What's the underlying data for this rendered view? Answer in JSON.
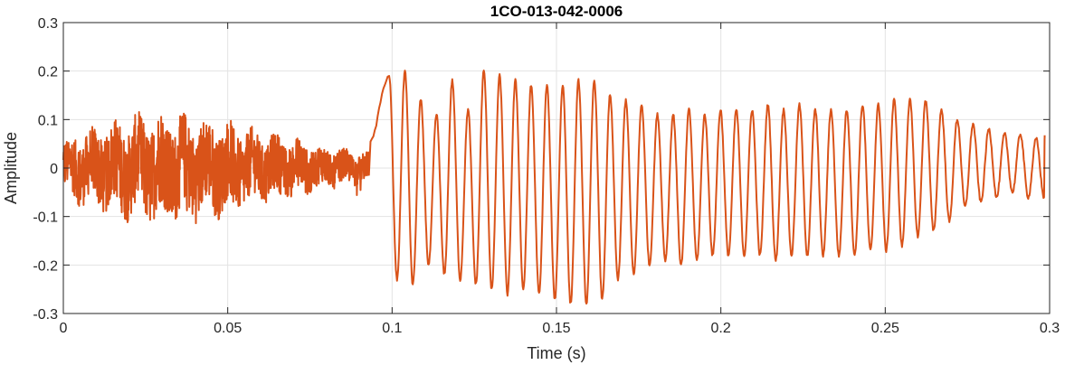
{
  "chart_data": {
    "type": "line",
    "title": "1CO-013-042-0006",
    "xlabel": "Time (s)",
    "ylabel": "Amplitude",
    "xlim": [
      0,
      0.3
    ],
    "ylim": [
      -0.3,
      0.3
    ],
    "xticks": [
      0,
      0.05,
      0.1,
      0.15,
      0.2,
      0.25,
      0.3
    ],
    "xtick_labels": [
      "0",
      "0.05",
      "0.1",
      "0.15",
      "0.2",
      "0.25",
      "0.3"
    ],
    "yticks": [
      -0.3,
      -0.2,
      -0.1,
      0,
      0.1,
      0.2,
      0.3
    ],
    "ytick_labels": [
      "-0.3",
      "-0.2",
      "-0.1",
      "0",
      "0.1",
      "0.2",
      "0.3"
    ],
    "grid": true,
    "line_color": "#D95319",
    "series": [
      {
        "noise_segment": {
          "t_start": 0,
          "t_end": 0.093,
          "amplitude_envelope": [
            [
              0,
              0.06
            ],
            [
              0.01,
              0.08
            ],
            [
              0.02,
              0.1
            ],
            [
              0.03,
              0.11
            ],
            [
              0.04,
              0.1
            ],
            [
              0.05,
              0.09
            ],
            [
              0.06,
              0.07
            ],
            [
              0.07,
              0.06
            ],
            [
              0.08,
              0.04
            ],
            [
              0.093,
              0.03
            ]
          ]
        },
        "peaks": [
          [
            0.0991,
            0.19,
            -0.23
          ],
          [
            0.1039,
            0.2,
            -0.24
          ],
          [
            0.1087,
            0.14,
            -0.2
          ],
          [
            0.1135,
            0.11,
            -0.22
          ],
          [
            0.1183,
            0.18,
            -0.23
          ],
          [
            0.1231,
            0.12,
            -0.24
          ],
          [
            0.1279,
            0.2,
            -0.25
          ],
          [
            0.1327,
            0.19,
            -0.26
          ],
          [
            0.1375,
            0.18,
            -0.25
          ],
          [
            0.1423,
            0.17,
            -0.26
          ],
          [
            0.1471,
            0.17,
            -0.27
          ],
          [
            0.1519,
            0.17,
            -0.28
          ],
          [
            0.1567,
            0.18,
            -0.28
          ],
          [
            0.1615,
            0.18,
            -0.27
          ],
          [
            0.1663,
            0.15,
            -0.23
          ],
          [
            0.1711,
            0.14,
            -0.22
          ],
          [
            0.1759,
            0.13,
            -0.2
          ],
          [
            0.1807,
            0.11,
            -0.19
          ],
          [
            0.1855,
            0.11,
            -0.2
          ],
          [
            0.1903,
            0.12,
            -0.19
          ],
          [
            0.1951,
            0.11,
            -0.18
          ],
          [
            0.1999,
            0.12,
            -0.18
          ],
          [
            0.2047,
            0.12,
            -0.18
          ],
          [
            0.2095,
            0.12,
            -0.18
          ],
          [
            0.2143,
            0.13,
            -0.19
          ],
          [
            0.2191,
            0.12,
            -0.18
          ],
          [
            0.2239,
            0.13,
            -0.18
          ],
          [
            0.2287,
            0.12,
            -0.18
          ],
          [
            0.2335,
            0.12,
            -0.18
          ],
          [
            0.2383,
            0.12,
            -0.18
          ],
          [
            0.2431,
            0.13,
            -0.17
          ],
          [
            0.2479,
            0.13,
            -0.17
          ],
          [
            0.2527,
            0.14,
            -0.16
          ],
          [
            0.2575,
            0.14,
            -0.14
          ],
          [
            0.2623,
            0.14,
            -0.13
          ],
          [
            0.2671,
            0.12,
            -0.11
          ],
          [
            0.2719,
            0.1,
            -0.08
          ],
          [
            0.2767,
            0.09,
            -0.07
          ],
          [
            0.2815,
            0.08,
            -0.06
          ],
          [
            0.2863,
            0.07,
            -0.05
          ],
          [
            0.2911,
            0.07,
            -0.06
          ],
          [
            0.2959,
            0.06,
            -0.06
          ]
        ]
      }
    ]
  }
}
